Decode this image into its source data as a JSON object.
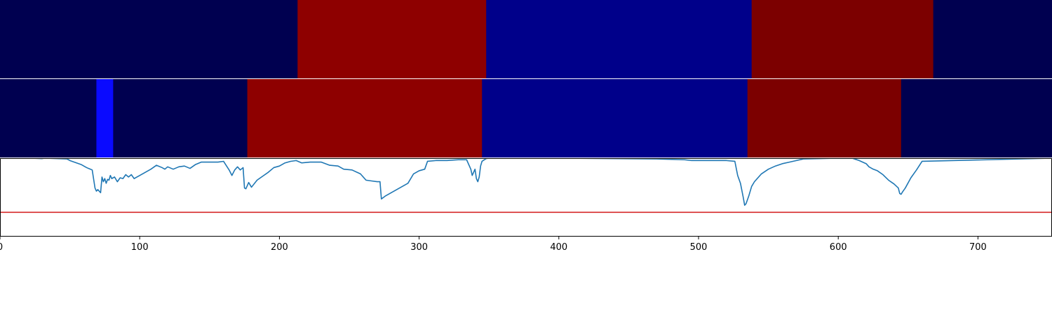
{
  "chart_data": [
    {
      "type": "heatmap",
      "title": "",
      "xlim": [
        0,
        753
      ],
      "segments": [
        {
          "start": 0,
          "end": 213,
          "color": "#000050"
        },
        {
          "start": 213,
          "end": 348,
          "color": "#8e0000"
        },
        {
          "start": 348,
          "end": 538,
          "color": "#00008a"
        },
        {
          "start": 538,
          "end": 668,
          "color": "#7c0000"
        },
        {
          "start": 668,
          "end": 753,
          "color": "#000050"
        }
      ]
    },
    {
      "type": "heatmap",
      "title": "",
      "xlim": [
        0,
        753
      ],
      "segments": [
        {
          "start": 0,
          "end": 69,
          "color": "#000050"
        },
        {
          "start": 69,
          "end": 81,
          "color": "#0a0aff"
        },
        {
          "start": 81,
          "end": 177,
          "color": "#000050"
        },
        {
          "start": 177,
          "end": 345,
          "color": "#8e0000"
        },
        {
          "start": 345,
          "end": 535,
          "color": "#00008a"
        },
        {
          "start": 535,
          "end": 645,
          "color": "#7c0000"
        },
        {
          "start": 645,
          "end": 753,
          "color": "#000050"
        }
      ]
    },
    {
      "type": "line",
      "title": "",
      "xlabel": "",
      "ylabel": "",
      "xlim": [
        0,
        753
      ],
      "ylim": [
        0,
        1
      ],
      "grid": false,
      "x_ticks": [
        0,
        100,
        200,
        300,
        400,
        500,
        600,
        700
      ],
      "threshold": {
        "value": 0.31,
        "color": "#d62728"
      },
      "series": [
        {
          "color": "#1f77b4",
          "x": [
            0,
            25,
            30,
            32,
            48,
            50,
            58,
            62,
            66,
            68,
            69,
            70,
            72,
            73,
            74,
            75,
            76,
            77,
            78,
            79,
            80,
            82,
            84,
            86,
            88,
            90,
            92,
            94,
            96,
            100,
            104,
            108,
            112,
            116,
            118,
            120,
            124,
            128,
            132,
            136,
            140,
            144,
            150,
            156,
            160,
            164,
            166,
            168,
            170,
            172,
            174,
            175,
            176,
            178,
            180,
            184,
            188,
            192,
            196,
            200,
            204,
            208,
            212,
            216,
            222,
            230,
            236,
            242,
            246,
            252,
            258,
            262,
            266,
            270,
            272,
            273,
            276,
            280,
            284,
            288,
            292,
            296,
            300,
            304,
            306,
            312,
            320,
            328,
            334,
            337,
            338,
            340,
            341,
            342,
            343,
            344,
            345,
            348,
            350,
            355,
            400,
            470,
            490,
            495,
            510,
            520,
            526,
            528,
            530,
            532,
            533,
            534,
            536,
            538,
            540,
            545,
            550,
            555,
            560,
            565,
            570,
            575,
            600,
            610,
            615,
            620,
            622,
            625,
            628,
            632,
            636,
            640,
            643,
            644,
            645,
            646,
            648,
            652,
            656,
            660,
            753
          ],
          "y": [
            1.0,
            0.998,
            0.995,
            1.0,
            0.99,
            0.97,
            0.92,
            0.88,
            0.85,
            0.62,
            0.58,
            0.6,
            0.56,
            0.76,
            0.7,
            0.74,
            0.68,
            0.73,
            0.72,
            0.78,
            0.74,
            0.76,
            0.7,
            0.75,
            0.74,
            0.79,
            0.76,
            0.79,
            0.74,
            0.78,
            0.82,
            0.86,
            0.91,
            0.88,
            0.86,
            0.89,
            0.86,
            0.89,
            0.9,
            0.87,
            0.92,
            0.95,
            0.95,
            0.95,
            0.96,
            0.85,
            0.78,
            0.85,
            0.89,
            0.85,
            0.88,
            0.62,
            0.61,
            0.69,
            0.63,
            0.72,
            0.77,
            0.82,
            0.88,
            0.9,
            0.94,
            0.96,
            0.97,
            0.94,
            0.95,
            0.95,
            0.91,
            0.9,
            0.86,
            0.85,
            0.8,
            0.72,
            0.71,
            0.7,
            0.7,
            0.48,
            0.52,
            0.56,
            0.6,
            0.64,
            0.68,
            0.8,
            0.84,
            0.86,
            0.96,
            0.97,
            0.97,
            0.98,
            0.98,
            0.86,
            0.78,
            0.86,
            0.74,
            0.7,
            0.76,
            0.9,
            0.96,
            0.995,
            1.0,
            1.0,
            1.0,
            0.99,
            0.98,
            0.97,
            0.97,
            0.97,
            0.96,
            0.78,
            0.68,
            0.5,
            0.4,
            0.42,
            0.52,
            0.64,
            0.7,
            0.8,
            0.86,
            0.9,
            0.93,
            0.95,
            0.97,
            0.99,
            1.0,
            1.0,
            0.97,
            0.93,
            0.89,
            0.86,
            0.84,
            0.79,
            0.72,
            0.67,
            0.62,
            0.55,
            0.54,
            0.57,
            0.62,
            0.75,
            0.85,
            0.96,
            1.0
          ]
        }
      ]
    }
  ]
}
